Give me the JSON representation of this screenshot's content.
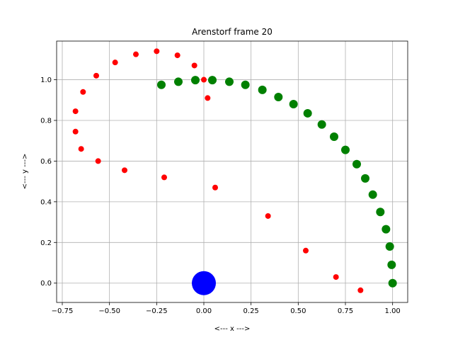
{
  "chart_data": {
    "type": "scatter",
    "title": "Arenstorf frame 20",
    "xlabel": "<---  x  --->",
    "ylabel": "<---  y  --->",
    "xlim": [
      -0.78,
      1.08
    ],
    "ylim": [
      -0.095,
      1.19
    ],
    "xticks": [
      -0.75,
      -0.5,
      -0.25,
      0.0,
      0.25,
      0.5,
      0.75,
      1.0
    ],
    "xtick_labels": [
      "−0.75",
      "−0.50",
      "−0.25",
      "0.00",
      "0.25",
      "0.50",
      "0.75",
      "1.00"
    ],
    "yticks": [
      0.0,
      0.2,
      0.4,
      0.6,
      0.8,
      1.0
    ],
    "ytick_labels": [
      "0.0",
      "0.2",
      "0.4",
      "0.6",
      "0.8",
      "1.0"
    ],
    "grid": true,
    "series": [
      {
        "color": "#ff0000",
        "marker_size": 4,
        "x": [
          1.0,
          0.83,
          0.7,
          0.54,
          0.34,
          0.06,
          -0.21,
          -0.42,
          -0.56,
          -0.65,
          -0.68,
          -0.68,
          -0.64,
          -0.57,
          -0.47,
          -0.36,
          -0.25,
          -0.14,
          -0.05,
          0.0,
          0.02
        ],
        "y": [
          0.0,
          -0.035,
          0.03,
          0.16,
          0.33,
          0.47,
          0.52,
          0.555,
          0.6,
          0.66,
          0.745,
          0.845,
          0.94,
          1.02,
          1.085,
          1.125,
          1.14,
          1.12,
          1.07,
          1.0,
          0.91
        ]
      },
      {
        "color": "#008000",
        "marker_size": 6,
        "x": [
          1.0,
          0.995,
          0.985,
          0.965,
          0.935,
          0.895,
          0.855,
          0.81,
          0.75,
          0.69,
          0.625,
          0.55,
          0.475,
          0.395,
          0.31,
          0.22,
          0.135,
          0.045,
          -0.045,
          -0.135,
          -0.225
        ],
        "y": [
          0.0,
          0.09,
          0.18,
          0.265,
          0.35,
          0.435,
          0.515,
          0.585,
          0.655,
          0.72,
          0.78,
          0.835,
          0.88,
          0.915,
          0.95,
          0.975,
          0.99,
          0.998,
          0.998,
          0.99,
          0.975
        ]
      },
      {
        "color": "#0000ff",
        "marker_size": 17,
        "x": [
          0.0
        ],
        "y": [
          0.0
        ]
      }
    ]
  }
}
